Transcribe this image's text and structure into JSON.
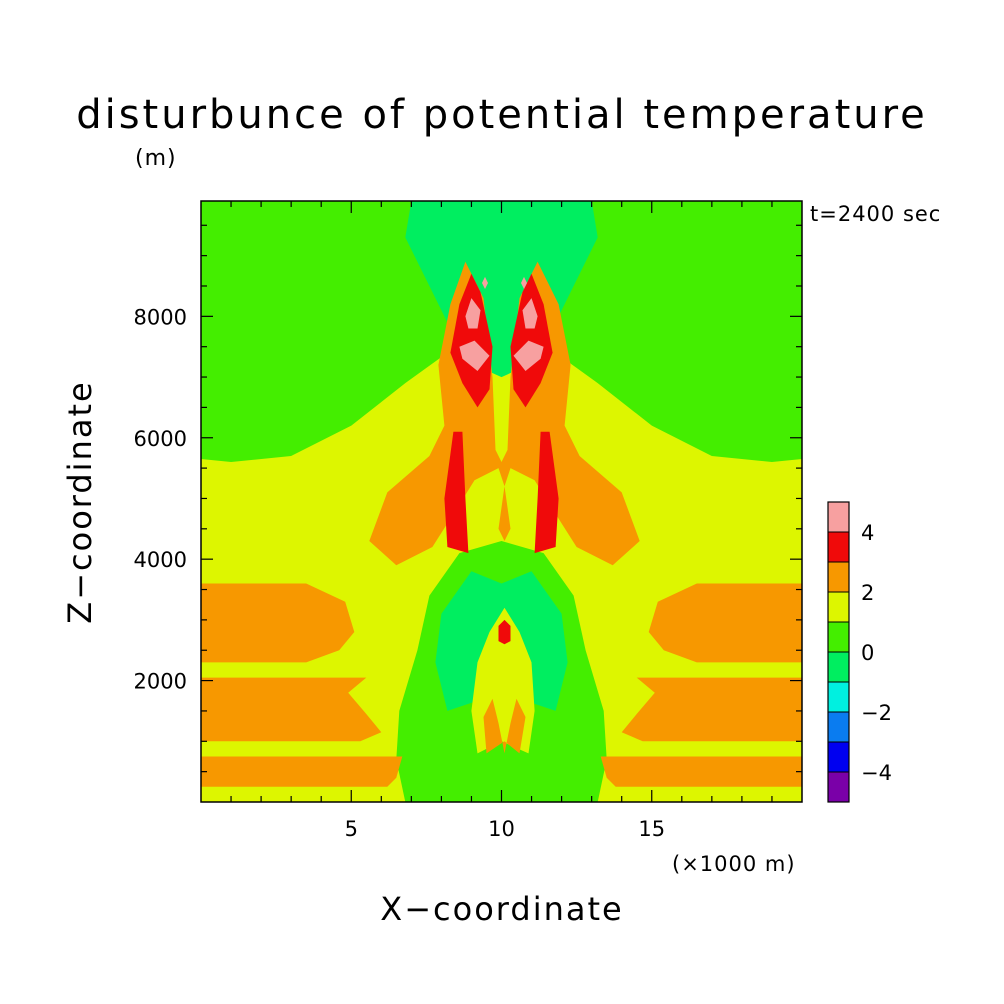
{
  "chart_data": {
    "type": "heatmap",
    "title": "disturbunce of potential temperature",
    "unit_label": "(m)",
    "time_label": "t=2400 sec",
    "xlabel": "X−coordinate",
    "ylabel": "Z−coordinate",
    "x_unit": "(×1000 m)",
    "xlim": [
      0,
      20
    ],
    "ylim": [
      0,
      9900
    ],
    "x_ticks": [
      {
        "value": 5,
        "label": "5"
      },
      {
        "value": 10,
        "label": "10"
      },
      {
        "value": 15,
        "label": "15"
      }
    ],
    "y_ticks": [
      {
        "value": 2000,
        "label": "2000"
      },
      {
        "value": 4000,
        "label": "4000"
      },
      {
        "value": 6000,
        "label": "6000"
      },
      {
        "value": 8000,
        "label": "8000"
      }
    ],
    "colorbar": {
      "range": [
        -5,
        5
      ],
      "levels": [
        {
          "from": -5,
          "to": -4,
          "color": "#7a00a8"
        },
        {
          "from": -4,
          "to": -3,
          "color": "#0000f0"
        },
        {
          "from": -3,
          "to": -2,
          "color": "#0a7cf0"
        },
        {
          "from": -2,
          "to": -1,
          "color": "#00f0e0"
        },
        {
          "from": -1,
          "to": 0,
          "color": "#00ee60"
        },
        {
          "from": 0,
          "to": 1,
          "color": "#44ee00"
        },
        {
          "from": 1,
          "to": 2,
          "color": "#ddf600"
        },
        {
          "from": 2,
          "to": 3,
          "color": "#f79800"
        },
        {
          "from": 3,
          "to": 4,
          "color": "#f00a0a"
        },
        {
          "from": 4,
          "to": 5,
          "color": "#f7a0a0"
        }
      ],
      "ticks": [
        {
          "value": 4,
          "label": "4"
        },
        {
          "value": 2,
          "label": "2"
        },
        {
          "value": 0,
          "label": "0"
        },
        {
          "value": -2,
          "label": "−2"
        },
        {
          "value": -4,
          "label": "−4"
        }
      ]
    },
    "regions": [
      {
        "level": 0.5,
        "points": [
          [
            0,
            0
          ],
          [
            20,
            0
          ],
          [
            20,
            9900
          ],
          [
            0,
            9900
          ]
        ]
      },
      {
        "level": -0.5,
        "points": [
          [
            7,
            9900
          ],
          [
            6.8,
            9300
          ],
          [
            7.6,
            8500
          ],
          [
            8.3,
            7800
          ],
          [
            9,
            7200
          ],
          [
            10,
            6800
          ],
          [
            11,
            7200
          ],
          [
            11.7,
            7800
          ],
          [
            12.4,
            8500
          ],
          [
            13.2,
            9300
          ],
          [
            13,
            9900
          ]
        ]
      },
      {
        "level": 1.5,
        "points": [
          [
            0,
            5650
          ],
          [
            1,
            5600
          ],
          [
            3,
            5700
          ],
          [
            5,
            6200
          ],
          [
            6.8,
            6900
          ],
          [
            8.2,
            7400
          ],
          [
            10,
            7000
          ],
          [
            11.8,
            7400
          ],
          [
            13.2,
            6900
          ],
          [
            15,
            6200
          ],
          [
            17,
            5700
          ],
          [
            19,
            5600
          ],
          [
            20,
            5650
          ],
          [
            20,
            0
          ],
          [
            0,
            0
          ]
        ]
      },
      {
        "level": 0.5,
        "points": [
          [
            6.8,
            0
          ],
          [
            6.5,
            700
          ],
          [
            6.6,
            1500
          ],
          [
            7.2,
            2500
          ],
          [
            7.6,
            3400
          ],
          [
            8.6,
            4100
          ],
          [
            10,
            4300
          ],
          [
            11.4,
            4100
          ],
          [
            12.4,
            3400
          ],
          [
            12.8,
            2500
          ],
          [
            13.4,
            1500
          ],
          [
            13.5,
            700
          ],
          [
            13.2,
            0
          ]
        ]
      },
      {
        "level": -0.5,
        "points": [
          [
            8.2,
            1500
          ],
          [
            7.8,
            2300
          ],
          [
            8,
            3100
          ],
          [
            9,
            3800
          ],
          [
            10,
            3600
          ],
          [
            11,
            3800
          ],
          [
            12,
            3100
          ],
          [
            12.2,
            2300
          ],
          [
            11.8,
            1500
          ],
          [
            10,
            1800
          ]
        ]
      },
      {
        "level": 1.5,
        "points": [
          [
            9.2,
            800
          ],
          [
            9,
            1500
          ],
          [
            9.2,
            2300
          ],
          [
            9.6,
            2800
          ],
          [
            10.1,
            3200
          ],
          [
            10.6,
            2800
          ],
          [
            11,
            2300
          ],
          [
            11.1,
            1500
          ],
          [
            10.9,
            800
          ],
          [
            10,
            1000
          ]
        ]
      },
      {
        "level": 2.5,
        "points": [
          [
            9.5,
            800
          ],
          [
            9.4,
            1400
          ],
          [
            9.7,
            1700
          ],
          [
            9.9,
            1300
          ],
          [
            10.1,
            800
          ],
          [
            10.3,
            1300
          ],
          [
            10.5,
            1700
          ],
          [
            10.8,
            1400
          ],
          [
            10.6,
            800
          ],
          [
            10.1,
            1000
          ]
        ]
      },
      {
        "level": 3.5,
        "points": [
          [
            9.9,
            2650
          ],
          [
            10.1,
            2600
          ],
          [
            10.3,
            2650
          ],
          [
            10.3,
            2900
          ],
          [
            10.1,
            3000
          ],
          [
            9.9,
            2900
          ]
        ]
      },
      {
        "level": 2.5,
        "points": [
          [
            0,
            3600
          ],
          [
            3.5,
            3600
          ],
          [
            4.8,
            3300
          ],
          [
            5.1,
            2800
          ],
          [
            4.6,
            2500
          ],
          [
            3.5,
            2300
          ],
          [
            0,
            2300
          ]
        ]
      },
      {
        "level": 2.5,
        "points": [
          [
            0,
            2050
          ],
          [
            5.5,
            2050
          ],
          [
            4.9,
            1800
          ],
          [
            5.5,
            1450
          ],
          [
            6,
            1150
          ],
          [
            5.3,
            1000
          ],
          [
            0,
            1000
          ]
        ]
      },
      {
        "level": 2.5,
        "points": [
          [
            0,
            750
          ],
          [
            6.7,
            750
          ],
          [
            6.5,
            400
          ],
          [
            6.2,
            250
          ],
          [
            0,
            250
          ]
        ]
      },
      {
        "level": 2.5,
        "points": [
          [
            20,
            3600
          ],
          [
            16.5,
            3600
          ],
          [
            15.2,
            3300
          ],
          [
            14.9,
            2800
          ],
          [
            15.4,
            2500
          ],
          [
            16.5,
            2300
          ],
          [
            20,
            2300
          ]
        ]
      },
      {
        "level": 2.5,
        "points": [
          [
            20,
            2050
          ],
          [
            14.5,
            2050
          ],
          [
            15.1,
            1800
          ],
          [
            14.5,
            1450
          ],
          [
            14,
            1150
          ],
          [
            14.7,
            1000
          ],
          [
            20,
            1000
          ]
        ]
      },
      {
        "level": 2.5,
        "points": [
          [
            20,
            750
          ],
          [
            13.3,
            750
          ],
          [
            13.5,
            400
          ],
          [
            13.8,
            250
          ],
          [
            20,
            250
          ]
        ]
      },
      {
        "level": 2.5,
        "points": [
          [
            8.3,
            8200
          ],
          [
            7.9,
            7200
          ],
          [
            8.1,
            6200
          ],
          [
            7.6,
            5700
          ],
          [
            6.2,
            5100
          ],
          [
            5.6,
            4300
          ],
          [
            6.5,
            3900
          ],
          [
            7.7,
            4200
          ],
          [
            8.6,
            4900
          ],
          [
            9.1,
            5300
          ],
          [
            9.9,
            5500
          ],
          [
            10.1,
            5200
          ],
          [
            9.9,
            4500
          ],
          [
            10.1,
            4300
          ],
          [
            10.3,
            4500
          ],
          [
            10.1,
            5200
          ],
          [
            10.3,
            5500
          ],
          [
            11.1,
            5300
          ],
          [
            11.6,
            4900
          ],
          [
            12.5,
            4200
          ],
          [
            13.7,
            3900
          ],
          [
            14.6,
            4300
          ],
          [
            14,
            5100
          ],
          [
            12.6,
            5700
          ],
          [
            12.1,
            6200
          ],
          [
            12.3,
            7200
          ],
          [
            11.9,
            8200
          ],
          [
            11.2,
            8900
          ],
          [
            10.6,
            8300
          ],
          [
            10.3,
            7000
          ],
          [
            10.2,
            5800
          ],
          [
            10,
            5600
          ],
          [
            9.8,
            5800
          ],
          [
            9.7,
            7000
          ],
          [
            9.4,
            8300
          ],
          [
            8.8,
            8900
          ]
        ]
      },
      {
        "level": 3.5,
        "points": [
          [
            8.6,
            8200
          ],
          [
            8.3,
            7400
          ],
          [
            8.7,
            6900
          ],
          [
            9.2,
            6500
          ],
          [
            9.6,
            6800
          ],
          [
            9.7,
            7500
          ],
          [
            9.3,
            8400
          ],
          [
            9.0,
            8700
          ]
        ]
      },
      {
        "level": 3.5,
        "points": [
          [
            11.4,
            8200
          ],
          [
            11.7,
            7400
          ],
          [
            11.3,
            6900
          ],
          [
            10.8,
            6500
          ],
          [
            10.4,
            6800
          ],
          [
            10.3,
            7500
          ],
          [
            10.7,
            8400
          ],
          [
            11.0,
            8700
          ]
        ]
      },
      {
        "level": 3.5,
        "points": [
          [
            8.4,
            6100
          ],
          [
            8.1,
            5000
          ],
          [
            8.2,
            4200
          ],
          [
            8.9,
            4100
          ],
          [
            8.8,
            5000
          ],
          [
            8.7,
            6100
          ]
        ]
      },
      {
        "level": 3.5,
        "points": [
          [
            11.6,
            6100
          ],
          [
            11.9,
            5000
          ],
          [
            11.8,
            4200
          ],
          [
            11.1,
            4100
          ],
          [
            11.2,
            5000
          ],
          [
            11.3,
            6100
          ]
        ]
      },
      {
        "level": 4.5,
        "points": [
          [
            8.7,
            7300
          ],
          [
            9.2,
            7100
          ],
          [
            9.6,
            7350
          ],
          [
            9.1,
            7600
          ],
          [
            8.6,
            7500
          ]
        ]
      },
      {
        "level": 4.5,
        "points": [
          [
            11.3,
            7300
          ],
          [
            10.8,
            7100
          ],
          [
            10.4,
            7350
          ],
          [
            10.9,
            7600
          ],
          [
            11.4,
            7500
          ]
        ]
      },
      {
        "level": 4.5,
        "points": [
          [
            8.8,
            8000
          ],
          [
            9.0,
            8300
          ],
          [
            9.3,
            8100
          ],
          [
            9.2,
            7800
          ],
          [
            8.9,
            7800
          ]
        ]
      },
      {
        "level": 4.5,
        "points": [
          [
            11.2,
            8000
          ],
          [
            11.0,
            8300
          ],
          [
            10.7,
            8100
          ],
          [
            10.8,
            7800
          ],
          [
            11.1,
            7800
          ]
        ]
      },
      {
        "level": 4.5,
        "points": [
          [
            9.35,
            8550
          ],
          [
            9.45,
            8450
          ],
          [
            9.55,
            8550
          ],
          [
            9.45,
            8650
          ]
        ]
      },
      {
        "level": 4.5,
        "points": [
          [
            10.65,
            8550
          ],
          [
            10.75,
            8450
          ],
          [
            10.85,
            8550
          ],
          [
            10.75,
            8650
          ]
        ]
      }
    ]
  }
}
